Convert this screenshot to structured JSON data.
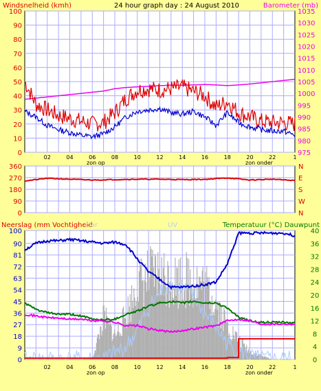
{
  "header": {
    "title": "24 hour graph day : 24 August 2010",
    "left_label": "Windsnelheid (kmh)",
    "right_label": "Barometer (mb)"
  },
  "colors": {
    "background": "#ffff99",
    "plot_bg": "#ffffff",
    "grid": "#aaaaff",
    "wind": "#dd0000",
    "wind_avg": "#0000cc",
    "barometer": "#ee00ee",
    "direction": "#dd0000",
    "humidity": "#0000cc",
    "temperature": "#007700",
    "dewpoint": "#ee00ee",
    "rain": "#ee0000",
    "solar": "#b0b0b0",
    "uv": "#aaccff"
  },
  "x_axis": {
    "ticks": [
      "02",
      "04",
      "06",
      "08",
      "10",
      "12",
      "14",
      "16",
      "18",
      "20",
      "22",
      "1"
    ],
    "sunrise_label": "zon op",
    "sunset_label": "zon onder"
  },
  "chart_data": [
    {
      "type": "line",
      "title": "24 hour graph day : 24 August 2010",
      "ylabel": "Windsnelheid (kmh)",
      "ylabel_right": "Barometer (mb)",
      "ylim": [
        0,
        100
      ],
      "ylim_right": [
        975,
        1035
      ],
      "y_ticks": [
        0,
        10,
        20,
        30,
        40,
        50,
        60,
        70,
        80,
        90,
        100
      ],
      "y_ticks_right": [
        975,
        980,
        985,
        990,
        995,
        1000,
        1005,
        1010,
        1015,
        1020,
        1025,
        1030,
        1035
      ],
      "x_hours": [
        0,
        1,
        2,
        3,
        4,
        5,
        6,
        7,
        8,
        9,
        10,
        11,
        12,
        13,
        14,
        15,
        16,
        17,
        18,
        19,
        20,
        21,
        22,
        23,
        24
      ],
      "series": [
        {
          "name": "wind_gust",
          "axis": "left",
          "values": [
            50,
            34,
            30,
            26,
            24,
            22,
            20,
            21,
            28,
            38,
            44,
            45,
            44,
            45,
            46,
            43,
            40,
            32,
            36,
            28,
            25,
            22,
            21,
            21,
            20
          ]
        },
        {
          "name": "wind_avg",
          "axis": "left",
          "values": [
            29,
            25,
            19,
            16,
            14,
            12,
            11,
            13,
            18,
            25,
            29,
            30,
            31,
            28,
            27,
            29,
            25,
            19,
            28,
            21,
            18,
            16,
            15,
            15,
            12
          ]
        },
        {
          "name": "barometer",
          "axis": "right",
          "values": [
            997.5,
            998,
            998.5,
            999,
            999.5,
            1000,
            1000.5,
            1001,
            1002,
            1002.5,
            1002.8,
            1003,
            1003.3,
            1003.5,
            1003.5,
            1003.6,
            1003.8,
            1003.6,
            1003.3,
            1003.6,
            1004,
            1004.5,
            1005,
            1005.5,
            1006
          ]
        }
      ]
    },
    {
      "type": "line",
      "ylim": [
        0,
        360
      ],
      "y_ticks": [
        0,
        90,
        180,
        270,
        360
      ],
      "y_ticks_right": [
        "N",
        "W",
        "S",
        "E",
        "N"
      ],
      "x_hours": [
        0,
        2,
        4,
        6,
        8,
        10,
        12,
        14,
        16,
        18,
        20,
        22,
        24
      ],
      "series": [
        {
          "name": "wind_direction",
          "values": [
            245,
            265,
            258,
            252,
            255,
            258,
            258,
            255,
            257,
            268,
            252,
            258,
            248
          ]
        }
      ]
    },
    {
      "type": "line",
      "ylabel": "Neerslag (mm Vochtigheid",
      "solar_label": "olar",
      "uv_label": "UV",
      "ylabel_right": "Temperatuur (°C) Dauwpunt",
      "ylim": [
        0,
        100
      ],
      "ylim_right": [
        0,
        40
      ],
      "y_ticks": [
        0,
        9,
        18,
        27,
        36,
        45,
        54,
        63,
        72,
        81,
        90,
        100
      ],
      "y_ticks_label": [
        "0",
        "9",
        "18",
        "27",
        "36",
        "45",
        "54",
        "63",
        "72",
        "81",
        "90",
        "100"
      ],
      "y_ticks_right": [
        0,
        4,
        8,
        12,
        16,
        20,
        24,
        28,
        32,
        36,
        40
      ],
      "x_hours": [
        0,
        1,
        2,
        3,
        4,
        5,
        6,
        7,
        8,
        9,
        10,
        11,
        12,
        13,
        14,
        15,
        16,
        17,
        18,
        19,
        20,
        21,
        22,
        23,
        24
      ],
      "series": [
        {
          "name": "humidity",
          "axis": "left",
          "values": [
            85,
            90,
            92,
            92,
            93,
            92,
            91,
            90,
            91,
            89,
            78,
            68,
            62,
            56,
            56,
            57,
            58,
            60,
            74,
            98,
            98,
            98,
            98,
            98,
            96
          ]
        },
        {
          "name": "temperature",
          "axis": "right",
          "values": [
            17.5,
            15.5,
            14.5,
            14,
            14,
            13.5,
            12.5,
            12.3,
            12.5,
            14,
            15,
            16.5,
            17.5,
            18,
            17.5,
            18,
            17.5,
            17.5,
            16,
            13,
            12,
            11.5,
            11.5,
            11.5,
            11.3
          ]
        },
        {
          "name": "dewpoint",
          "axis": "right",
          "values": [
            14,
            13.5,
            13,
            12.8,
            12.5,
            12.5,
            12,
            12,
            11.5,
            10.5,
            10.5,
            9.5,
            9,
            8.5,
            9,
            9.5,
            10,
            10.5,
            12,
            12.5,
            12,
            11,
            11,
            11,
            11
          ]
        },
        {
          "name": "rain",
          "axis": "left",
          "values": [
            1,
            1,
            1,
            1,
            1,
            1,
            1,
            1,
            1,
            1,
            1,
            1,
            1,
            1,
            1,
            1,
            1,
            1,
            1.5,
            16,
            16,
            16,
            16,
            16,
            16
          ]
        },
        {
          "name": "solar",
          "axis": "left",
          "values": [
            0,
            0,
            0,
            0,
            0,
            0,
            2,
            45,
            25,
            48,
            80,
            88,
            90,
            85,
            86,
            84,
            78,
            60,
            35,
            20,
            8,
            4,
            0,
            0,
            0
          ]
        },
        {
          "name": "uv",
          "axis": "left",
          "values": [
            0,
            0,
            0,
            0,
            0,
            0,
            0,
            0,
            5,
            10,
            22,
            40,
            52,
            58,
            55,
            50,
            35,
            25,
            12,
            6,
            2,
            0,
            0,
            0,
            0
          ]
        }
      ]
    }
  ]
}
